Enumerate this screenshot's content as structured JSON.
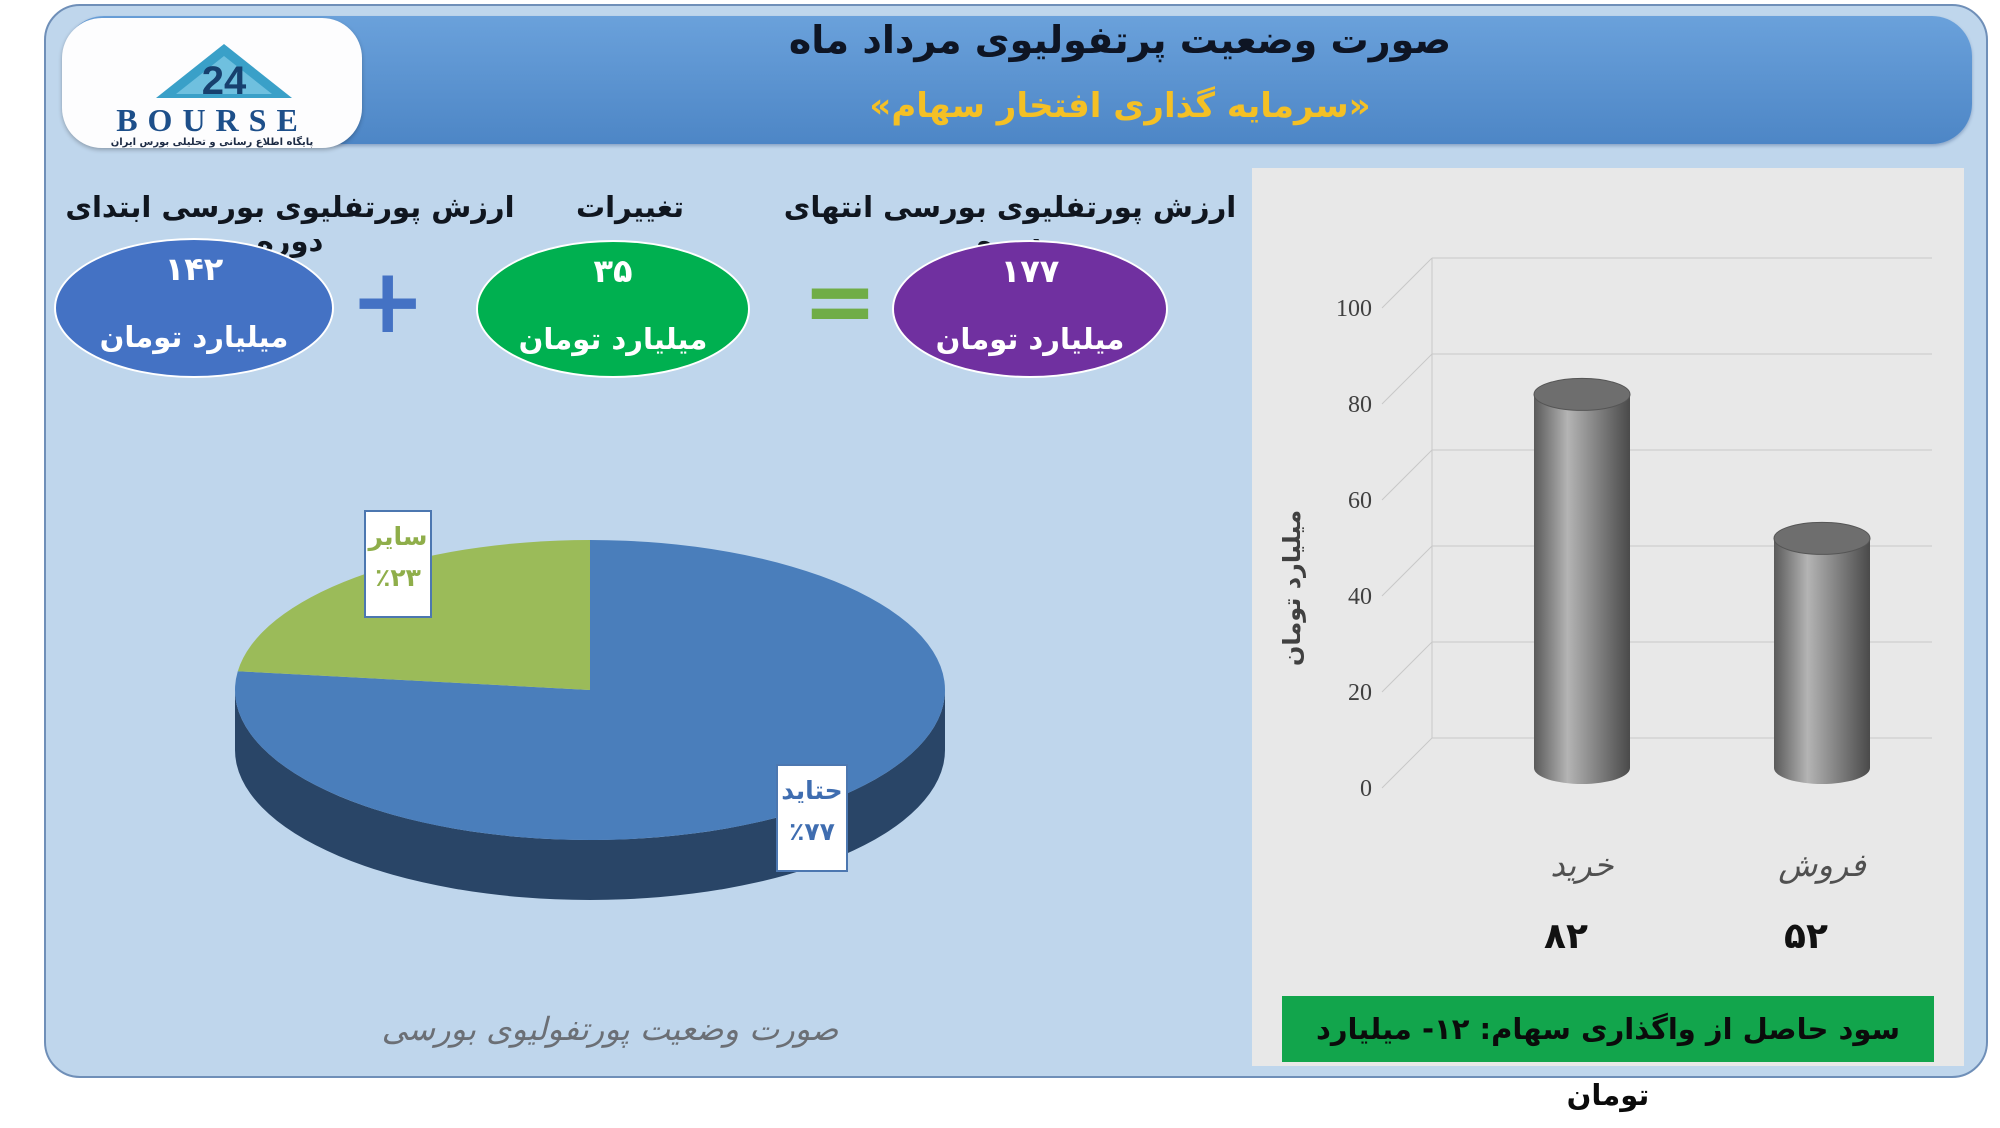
{
  "header": {
    "title": "صورت وضعیت پرتفولیوی مرداد ماه",
    "subtitle": "«سرمایه گذاری افتخار سهام»"
  },
  "logo": {
    "text": "BOURSE",
    "caption": "پایگاه اطلاع رسانی و تحلیلی بورس ایران"
  },
  "equation": {
    "start_label": "ارزش پورتفلیوی بورسی ابتدای دوره",
    "start_value": "۱۴۲",
    "change_label": "تغییرات",
    "change_value": "۳۵",
    "end_label": "ارزش پورتفلیوی بورسی انتهای دوره",
    "end_value": "۱۷۷",
    "unit": "میلیارد تومان",
    "plus": "+",
    "equals": "="
  },
  "colors": {
    "start": "#4472c4",
    "change": "#00b050",
    "end": "#7030a0",
    "plus": "#4472c4",
    "equals": "#70ad47",
    "pie_main": "#4a7ebb",
    "pie_other": "#9bbb59",
    "bar": "#7f7f7f"
  },
  "chart_data": [
    {
      "type": "pie",
      "title": "صورت وضعیت پورتفولیوی بورسی",
      "slices": [
        {
          "label": "حتاید",
          "value": 77,
          "display": "٪۷۷",
          "color": "#4a7ebb"
        },
        {
          "label": "سایر",
          "value": 23,
          "display": "٪۲۳",
          "color": "#9bbb59"
        }
      ]
    },
    {
      "type": "bar",
      "categories": [
        "خرید",
        "فروش"
      ],
      "values": [
        82,
        52
      ],
      "value_labels": [
        "۸۲",
        "۵۲"
      ],
      "ylabel": "میلیارد تومان",
      "ylim": [
        0,
        100
      ],
      "yticks": [
        "0",
        "20",
        "40",
        "60",
        "80",
        "100"
      ],
      "grid": true
    }
  ],
  "footer": {
    "text": "سود حاصل از واگذاری سهام: ۱۲- میلیارد تومان"
  }
}
